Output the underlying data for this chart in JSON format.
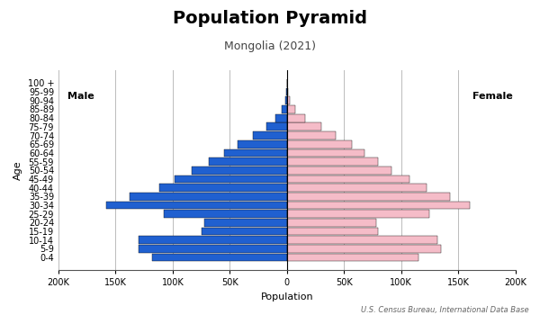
{
  "title": "Population Pyramid",
  "subtitle": "Mongolia (2021)",
  "source": "U.S. Census Bureau, International Data Base",
  "xlabel": "Population",
  "ylabel": "Age",
  "age_groups": [
    "0-4",
    "5-9",
    "10-14",
    "15-19",
    "20-24",
    "25-29",
    "30-34",
    "35-39",
    "40-44",
    "45-49",
    "50-54",
    "55-59",
    "60-64",
    "65-69",
    "70-74",
    "75-79",
    "80-84",
    "85-89",
    "90-94",
    "95-99",
    "100 +"
  ],
  "male": [
    118000,
    130000,
    130000,
    75000,
    72000,
    108000,
    158000,
    138000,
    112000,
    98000,
    83000,
    68000,
    55000,
    43000,
    30000,
    18000,
    10000,
    4500,
    1200,
    300,
    80
  ],
  "female": [
    115000,
    135000,
    132000,
    80000,
    78000,
    125000,
    160000,
    143000,
    122000,
    107000,
    92000,
    80000,
    68000,
    57000,
    43000,
    30000,
    16000,
    7000,
    2200,
    600,
    150
  ],
  "male_color": "#2060d0",
  "female_color": "#f5bcc8",
  "background_color": "#ffffff",
  "grid_color": "#bbbbbb",
  "bar_edge_color": "#111111",
  "xlim": 200000,
  "xtick_step": 50000,
  "title_fontsize": 14,
  "subtitle_fontsize": 9,
  "label_fontsize": 8,
  "tick_fontsize": 7
}
